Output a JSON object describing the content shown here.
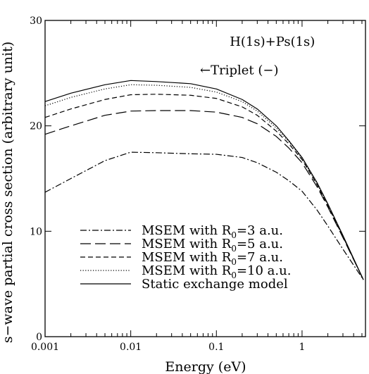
{
  "chart_data": {
    "type": "line",
    "xlabel": "Energy (eV)",
    "ylabel": "s−wave partial cross section (arbitrary unit)",
    "xscale": "log",
    "xlim": [
      0.001,
      5.5
    ],
    "ylim": [
      0,
      30
    ],
    "x_ticks": [
      {
        "value": 0.001,
        "label": "0.001"
      },
      {
        "value": 0.01,
        "label": "0.01"
      },
      {
        "value": 0.1,
        "label": "0.1"
      },
      {
        "value": 1,
        "label": "1"
      }
    ],
    "y_ticks": [
      {
        "value": 0,
        "label": "0"
      },
      {
        "value": 10,
        "label": "10"
      },
      {
        "value": 20,
        "label": "20"
      },
      {
        "value": 30,
        "label": "30"
      }
    ],
    "annotations": [
      {
        "text": "H(1s)+Ps(1s)",
        "x": 0.45,
        "y": 27.6
      },
      {
        "text": "←Triplet (−)",
        "x": 0.185,
        "y": 24.9
      }
    ],
    "legend_position": "lower-left",
    "series": [
      {
        "name": "MSEM with R",
        "name_sub": "0",
        "name_suffix": "=3 a.u.",
        "dash": "dashdot",
        "x": [
          0.001,
          0.002,
          0.005,
          0.01,
          0.02,
          0.05,
          0.1,
          0.2,
          0.3,
          0.5,
          0.7,
          1,
          1.5,
          2,
          3,
          5.2
        ],
        "y": [
          13.7,
          15.0,
          16.7,
          17.5,
          17.45,
          17.35,
          17.3,
          17.0,
          16.5,
          15.6,
          14.8,
          13.8,
          12.0,
          10.5,
          8.3,
          5.4
        ]
      },
      {
        "name": "MSEM with R",
        "name_sub": "0",
        "name_suffix": "=5 a.u.",
        "dash": "longdash",
        "x": [
          0.001,
          0.002,
          0.005,
          0.01,
          0.02,
          0.05,
          0.1,
          0.2,
          0.3,
          0.5,
          0.7,
          1,
          1.5,
          2,
          3,
          5.2
        ],
        "y": [
          19.2,
          20.0,
          21.0,
          21.4,
          21.45,
          21.45,
          21.3,
          20.8,
          20.2,
          19.0,
          17.9,
          16.5,
          14.2,
          12.3,
          9.4,
          5.4
        ]
      },
      {
        "name": "MSEM with R",
        "name_sub": "0",
        "name_suffix": "=7 a.u.",
        "dash": "dash",
        "x": [
          0.001,
          0.002,
          0.005,
          0.01,
          0.02,
          0.05,
          0.1,
          0.2,
          0.3,
          0.5,
          0.7,
          1,
          1.5,
          2,
          3,
          5.2
        ],
        "y": [
          20.8,
          21.6,
          22.5,
          22.95,
          23.0,
          22.9,
          22.6,
          21.8,
          21.0,
          19.5,
          18.3,
          16.8,
          14.4,
          12.4,
          9.5,
          5.4
        ]
      },
      {
        "name": "MSEM with R",
        "name_sub": "0",
        "name_suffix": "=10 a.u.",
        "dash": "dot",
        "x": [
          0.001,
          0.002,
          0.005,
          0.01,
          0.02,
          0.05,
          0.1,
          0.2,
          0.3,
          0.5,
          0.7,
          1,
          1.5,
          2,
          3,
          5.2
        ],
        "y": [
          21.9,
          22.7,
          23.5,
          23.9,
          23.85,
          23.65,
          23.2,
          22.3,
          21.4,
          19.8,
          18.5,
          16.9,
          14.5,
          12.5,
          9.5,
          5.4
        ]
      },
      {
        "name": "Static exchange model",
        "name_sub": "",
        "name_suffix": "",
        "dash": "solid",
        "x": [
          0.001,
          0.002,
          0.005,
          0.01,
          0.02,
          0.05,
          0.1,
          0.2,
          0.3,
          0.5,
          0.7,
          1,
          1.5,
          2,
          3,
          5.2
        ],
        "y": [
          22.3,
          23.1,
          23.9,
          24.3,
          24.2,
          24.0,
          23.5,
          22.5,
          21.6,
          20.0,
          18.6,
          17.0,
          14.6,
          12.6,
          9.6,
          5.4
        ]
      }
    ]
  }
}
